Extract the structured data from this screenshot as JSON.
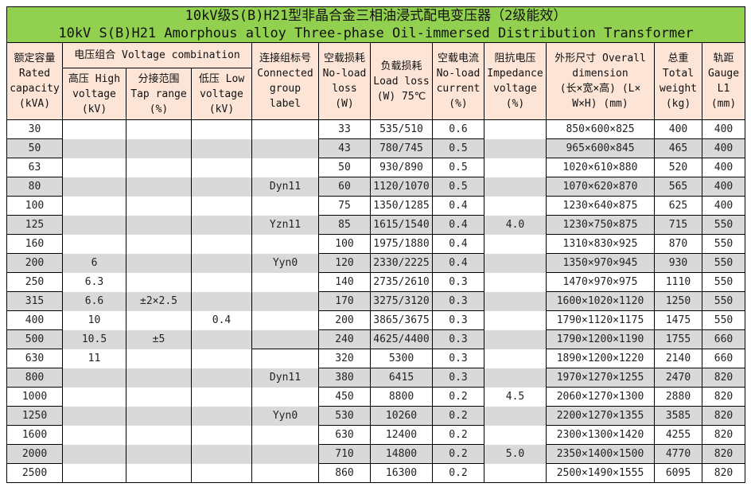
{
  "title": {
    "cn": "10kV级S(B)H21型非晶合金三相油浸式配电变压器（2级能效）",
    "en": "10kV S(B)H21 Amorphous alloy Three-phase Oil-immersed Distribution Transformer"
  },
  "headers": {
    "capacity": "额定容量\nRated\ncapacity\n(kVA)",
    "voltage_combination": "电压组合 Voltage combination",
    "high_voltage": "高压 High\nvoltage\n(kV)",
    "tap_range": "分接范围\nTap range\n(%)",
    "low_voltage": "低压 Low\nvoltage\n(kV)",
    "connection": "连接组标号\nConnected\ngroup\nlabel",
    "no_load_loss": "空载损耗\nNo-load\nloss\n(W)",
    "load_loss": "负载损耗\nLoad loss\n(W) 75℃",
    "no_load_current": "空载电流\nNo-load\ncurrent\n(%)",
    "impedance": "阻抗电压\nImpedance\nvoltage\n(%)",
    "dimension": "外形尺寸 Overall\ndimension\n(长×宽×高) (L×\nW×H) (mm)",
    "weight": "总重\nTotal\nweight\n(kg)",
    "gauge": "轨距\nGauge\nL1\n(mm)"
  },
  "rows": [
    [
      "30",
      "",
      "",
      "",
      "",
      "33",
      "535/510",
      "0.6",
      "",
      "850×600×825",
      "400",
      "400"
    ],
    [
      "50",
      "",
      "",
      "",
      "",
      "43",
      "780/745",
      "0.5",
      "",
      "965×600×845",
      "465",
      "400"
    ],
    [
      "63",
      "",
      "",
      "",
      "",
      "50",
      "930/890",
      "0.5",
      "",
      "1020×610×880",
      "520",
      "400"
    ],
    [
      "80",
      "",
      "",
      "",
      "Dyn11",
      "60",
      "1120/1070",
      "0.5",
      "",
      "1070×620×870",
      "565",
      "400"
    ],
    [
      "100",
      "",
      "",
      "",
      "",
      "75",
      "1350/1285",
      "0.4",
      "",
      "1230×640×875",
      "625",
      "400"
    ],
    [
      "125",
      "",
      "",
      "",
      "Yzn11",
      "85",
      "1615/1540",
      "0.4",
      "4.0",
      "1230×750×875",
      "715",
      "550"
    ],
    [
      "160",
      "",
      "",
      "",
      "",
      "100",
      "1975/1880",
      "0.4",
      "",
      "1310×830×925",
      "870",
      "550"
    ],
    [
      "200",
      "6",
      "",
      "",
      "Yyn0",
      "120",
      "2330/2225",
      "0.4",
      "",
      "1350×970×945",
      "930",
      "550"
    ],
    [
      "250",
      "6.3",
      "",
      "",
      "",
      "140",
      "2735/2610",
      "0.3",
      "",
      "1470×970×975",
      "1110",
      "550"
    ],
    [
      "315",
      "6.6",
      "±2×2.5",
      "",
      "",
      "170",
      "3275/3120",
      "0.3",
      "",
      "1600×1020×1120",
      "1250",
      "550"
    ],
    [
      "400",
      "10",
      "",
      "0.4",
      "",
      "200",
      "3865/3675",
      "0.3",
      "",
      "1790×1120×1175",
      "1475",
      "550"
    ],
    [
      "500",
      "10.5",
      "±5",
      "",
      "",
      "240",
      "4625/4400",
      "0.3",
      "",
      "1790×1200×1190",
      "1755",
      "660"
    ],
    [
      "630",
      "11",
      "",
      "",
      "",
      "320",
      "5300",
      "0.3",
      "",
      "1890×1200×1220",
      "2140",
      "660"
    ],
    [
      "800",
      "",
      "",
      "",
      "Dyn11",
      "380",
      "6415",
      "0.3",
      "",
      "1970×1270×1255",
      "2470",
      "820"
    ],
    [
      "1000",
      "",
      "",
      "",
      "",
      "450",
      "8800",
      "0.2",
      "4.5",
      "2060×1270×1300",
      "2880",
      "820"
    ],
    [
      "1250",
      "",
      "",
      "",
      "Yyn0",
      "530",
      "10260",
      "0.2",
      "",
      "2200×1270×1355",
      "3585",
      "820"
    ],
    [
      "1600",
      "",
      "",
      "",
      "",
      "630",
      "12400",
      "0.2",
      "",
      "2300×1300×1420",
      "4255",
      "820"
    ],
    [
      "2000",
      "",
      "",
      "",
      "",
      "710",
      "14800",
      "0.2",
      "5.0",
      "2350×1400×1500",
      "4770",
      "820"
    ],
    [
      "2500",
      "",
      "",
      "",
      "",
      "860",
      "16300",
      "0.2",
      "",
      "2500×1490×1555",
      "6095",
      "820"
    ]
  ],
  "colors": {
    "title_bg": "#92d050",
    "header_bg": "#fce4d6",
    "stripe": "#d9d9d9"
  }
}
